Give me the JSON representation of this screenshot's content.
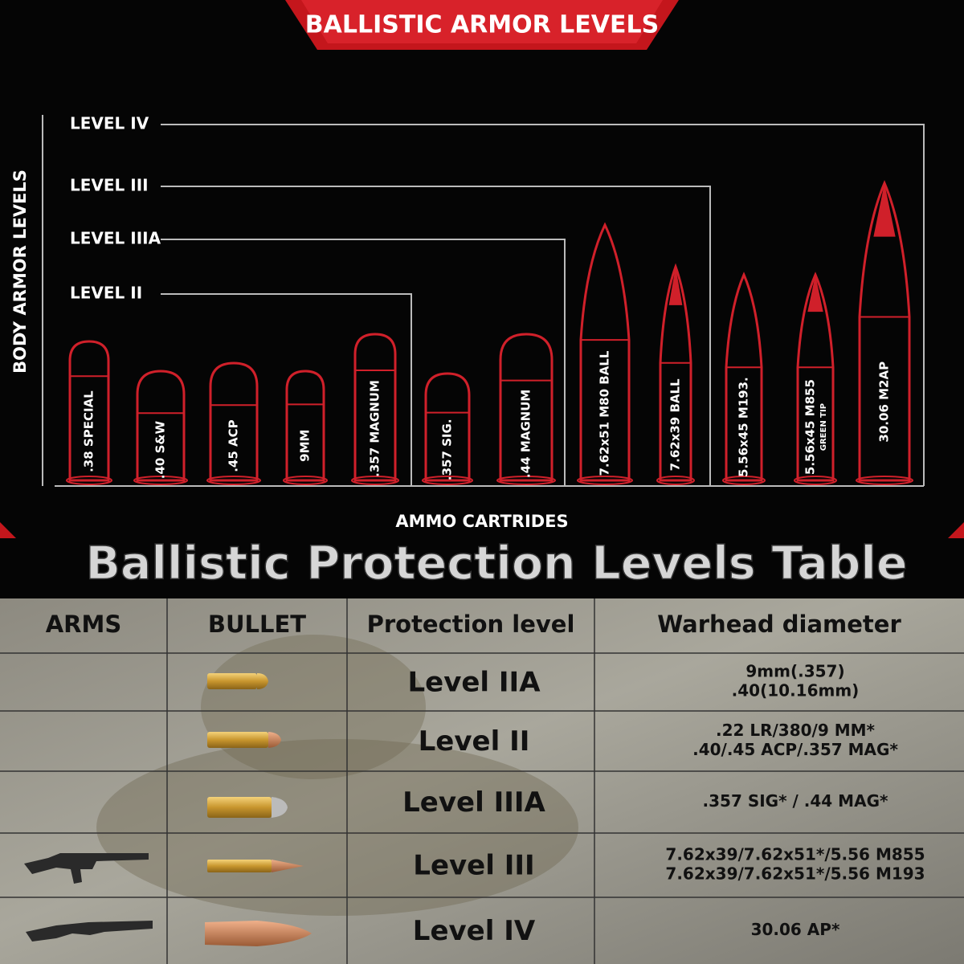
{
  "header": {
    "title": "BALLISTIC ARMOR LEVELS"
  },
  "diagram": {
    "y_label": "BODY ARMOR LEVELS",
    "x_label": "AMMO CARTRIDES",
    "levels": [
      "LEVEL IV",
      "LEVEL III",
      "LEVEL IIIA",
      "LEVEL II"
    ],
    "cartridges": [
      {
        "label": ".38 SPECIAL"
      },
      {
        "label": ".40 S&W"
      },
      {
        "label": ".45 ACP"
      },
      {
        "label": "9MM"
      },
      {
        "label": ".357 MAGNUM"
      },
      {
        "label": ".357 SIG."
      },
      {
        "label": ".44 MAGNUM"
      },
      {
        "label": "7.62x51 M80 BALL"
      },
      {
        "label": "7.62x39 BALL"
      },
      {
        "label": "5.56x45 M193."
      },
      {
        "label": "5.56x45 M855",
        "sublabel": "GREEN TIP"
      },
      {
        "label": "30.06 M2AP"
      }
    ]
  },
  "table": {
    "title": "Ballistic Protection Levels Table",
    "columns": [
      "ARMS",
      "BULLET",
      "Protection level",
      "Warhead diameter"
    ],
    "rows": [
      {
        "level": "Level IIA",
        "diameter": [
          "9mm(.357)",
          ".40(10.16mm)"
        ]
      },
      {
        "level": "Level II",
        "diameter": [
          ".22 LR/380/9 MM*",
          ".40/.45 ACP/.357 MAG*"
        ]
      },
      {
        "level": "Level IIIA",
        "diameter": [
          ".357 SIG* / .44 MAG*"
        ]
      },
      {
        "level": "Level III",
        "diameter": [
          "7.62x39/7.62x51*/5.56 M855",
          "7.62x39/7.62x51*/5.56 M193"
        ]
      },
      {
        "level": "Level IV",
        "diameter": [
          "30.06 AP*"
        ]
      }
    ]
  }
}
